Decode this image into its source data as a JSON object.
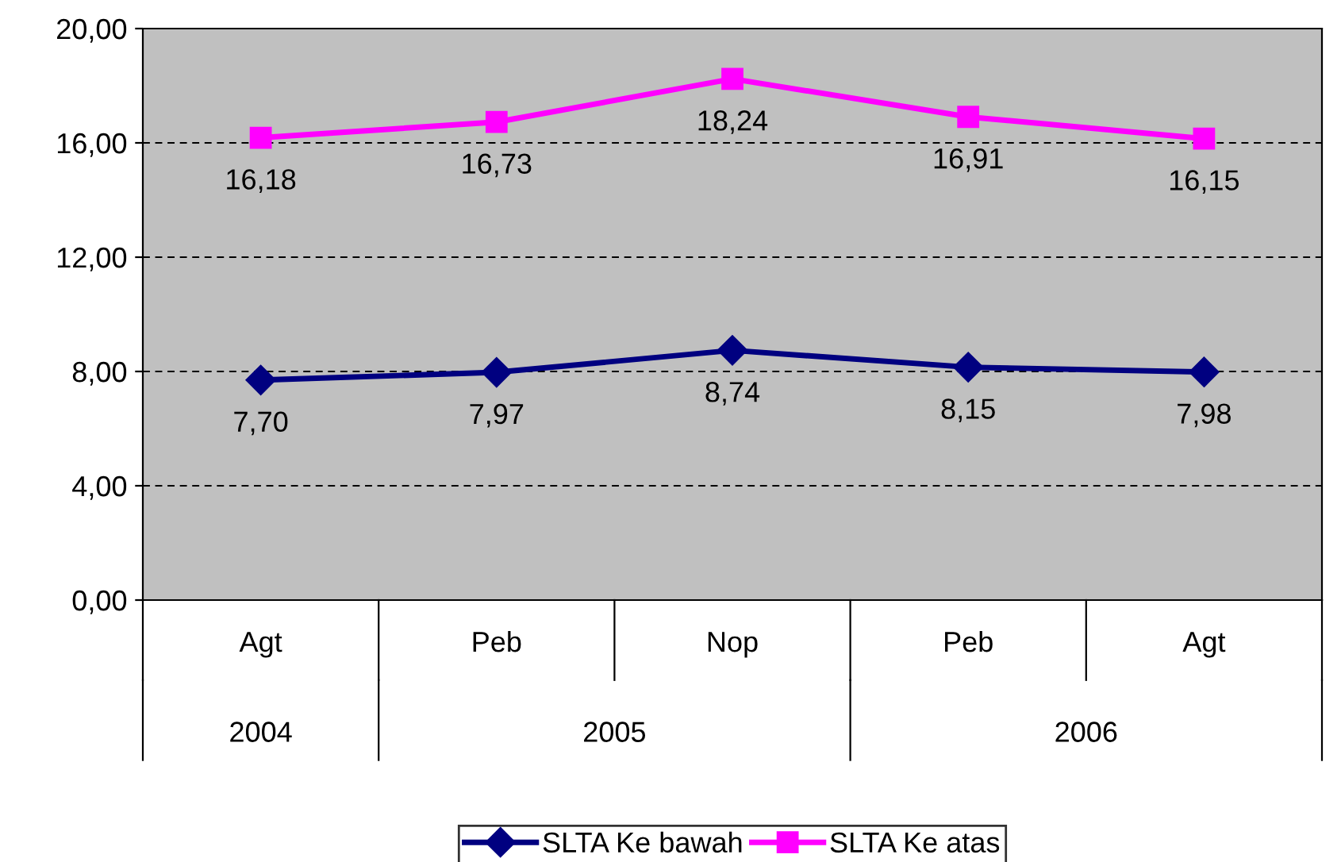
{
  "chart_data": {
    "type": "line",
    "categories": [
      "Agt",
      "Peb",
      "Nop",
      "Peb",
      "Agt"
    ],
    "series": [
      {
        "name": "SLTA Ke bawah",
        "color": "#000080",
        "marker": "diamond",
        "values": [
          7.7,
          7.97,
          8.74,
          8.15,
          7.98
        ]
      },
      {
        "name": "SLTA Ke atas",
        "color": "#ff00ff",
        "marker": "square",
        "values": [
          16.18,
          16.73,
          18.24,
          16.91,
          16.15
        ]
      }
    ],
    "ylim": [
      0,
      20
    ],
    "yticks": [
      {
        "value": 0,
        "label": "0,00"
      },
      {
        "value": 4,
        "label": "4,00"
      },
      {
        "value": 8,
        "label": "8,00"
      },
      {
        "value": 12,
        "label": "12,00"
      },
      {
        "value": 16,
        "label": "16,00"
      },
      {
        "value": 20,
        "label": "20,00"
      }
    ],
    "value_labels": [
      [
        "7,70",
        "7,97",
        "8,74",
        "8,15",
        "7,98"
      ],
      [
        "16,18",
        "16,73",
        "18,24",
        "16,91",
        "16,15"
      ]
    ],
    "annotations": [
      "2004",
      "2005",
      "2006"
    ],
    "grid": "y",
    "legend": "bottom",
    "line_style": "solid"
  }
}
